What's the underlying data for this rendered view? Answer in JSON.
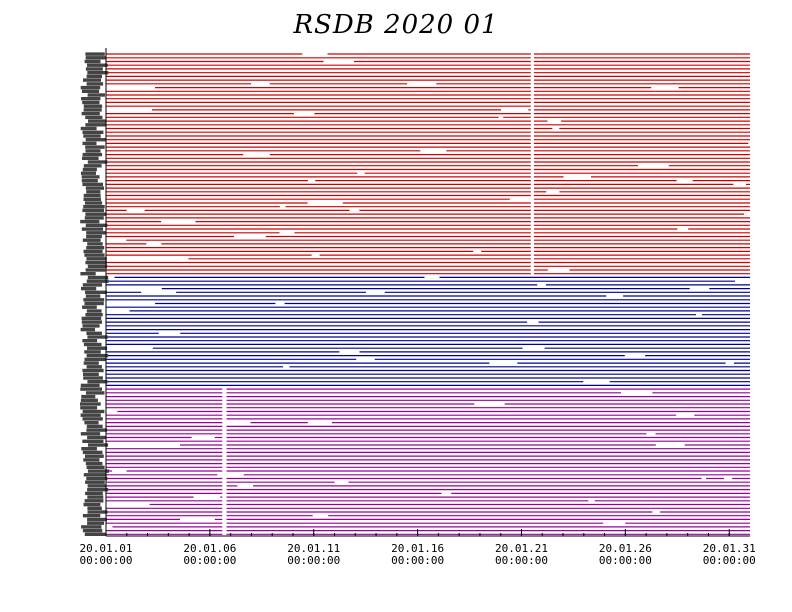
{
  "chart_data": {
    "type": "timeline",
    "title": "RSDB  2020  01",
    "x_ticks": [
      {
        "date": "20.01.01",
        "time": "00:00:00",
        "day": 1
      },
      {
        "date": "20.01.06",
        "time": "00:00:00",
        "day": 6
      },
      {
        "date": "20.01.11",
        "time": "00:00:00",
        "day": 11
      },
      {
        "date": "20.01.16",
        "time": "00:00:00",
        "day": 16
      },
      {
        "date": "20.01.21",
        "time": "00:00:00",
        "day": 21
      },
      {
        "date": "20.01.26",
        "time": "00:00:00",
        "day": 26
      },
      {
        "date": "20.01.31",
        "time": "00:00:00",
        "day": 31
      }
    ],
    "x_range_days": [
      1,
      32
    ],
    "groups": [
      {
        "color": "#d00000",
        "rows": 60,
        "common_gaps": [
          [
            21.45,
            21.6
          ]
        ]
      },
      {
        "color": "#000099",
        "rows": 30,
        "common_gaps": []
      },
      {
        "color": "#990099",
        "rows": 40,
        "common_gaps": [
          [
            6.6,
            6.8
          ]
        ]
      }
    ],
    "grid": false
  }
}
